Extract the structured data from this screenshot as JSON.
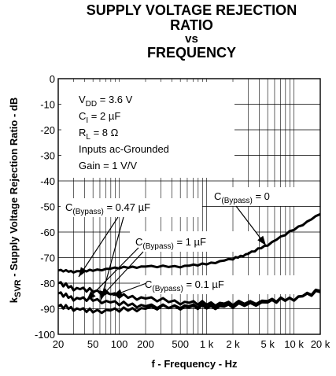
{
  "title": {
    "line1": "SUPPLY VOLTAGE REJECTION",
    "line2": "RATIO",
    "line3": "vs",
    "line4": "FREQUENCY"
  },
  "chart_data": {
    "type": "line",
    "title": "SUPPLY VOLTAGE REJECTION RATIO vs FREQUENCY",
    "xlabel": "f - Frequency - Hz",
    "ylabel": "kSVR - Supply Voltage Rejection Ratio - dB",
    "x_scale": "log",
    "xlim": [
      20,
      20000
    ],
    "ylim": [
      -100,
      0
    ],
    "x_ticks": [
      20,
      50,
      100,
      200,
      500,
      1000,
      2000,
      5000,
      10000,
      20000
    ],
    "x_tick_labels": [
      "20",
      "50",
      "100",
      "200",
      "500",
      "1 k",
      "2 k",
      "5 k",
      "10 k",
      "20 k"
    ],
    "y_ticks": [
      0,
      -10,
      -20,
      -30,
      -40,
      -50,
      -60,
      -70,
      -80,
      -90,
      -100
    ],
    "y_tick_labels": [
      "0",
      "-10",
      "-20",
      "-30",
      "-40",
      "-50",
      "-60",
      "-70",
      "-80",
      "-90",
      "-100"
    ],
    "grid": true,
    "conditions": [
      {
        "main": "V",
        "sub": "DD",
        "rest": " = 3.6 V"
      },
      {
        "main": "C",
        "sub": "I",
        "rest": " = 2 µF"
      },
      {
        "main": "R",
        "sub": "L",
        "rest": " = 8 Ω"
      },
      {
        "main": "Inputs ac-Grounded",
        "sub": "",
        "rest": ""
      },
      {
        "main": "Gain = 1 V/V",
        "sub": "",
        "rest": ""
      }
    ],
    "series": [
      {
        "name": "C(Bypass) = 0",
        "label_main": "C",
        "label_sub": "(Bypass)",
        "label_rest": " = 0",
        "x": [
          20,
          30,
          50,
          100,
          200,
          500,
          1000,
          2000,
          3000,
          5000,
          10000,
          20000
        ],
        "y": [
          -75,
          -75.5,
          -75,
          -74,
          -73.5,
          -73.5,
          -72.5,
          -70.5,
          -68.5,
          -65,
          -59,
          -53
        ]
      },
      {
        "name": "C(Bypass) = 0.47 µF",
        "label_main": "C",
        "label_sub": "(Bypass)",
        "label_rest": " = 0.47 µF",
        "x": [
          20,
          30,
          50,
          100,
          200,
          500,
          1000,
          2000,
          5000,
          10000,
          20000
        ],
        "y": [
          -80,
          -82,
          -83,
          -85,
          -86,
          -87.5,
          -88,
          -88,
          -87,
          -86,
          -83
        ]
      },
      {
        "name": "C(Bypass) = 1 µF",
        "label_main": "C",
        "label_sub": "(Bypass)",
        "label_rest": " = 1 µF",
        "x": [
          20,
          30,
          50,
          100,
          200,
          500,
          1000,
          2000,
          5000,
          10000,
          20000
        ],
        "y": [
          -84,
          -86,
          -86.5,
          -88,
          -89,
          -89.5,
          -89.5,
          -89,
          -87.5,
          -86,
          -83
        ]
      },
      {
        "name": "C(Bypass) = 0.1 µF",
        "label_main": "C",
        "label_sub": "(Bypass)",
        "label_rest": " = 0.1 µF",
        "x": [
          20,
          30,
          50,
          100,
          200,
          500,
          1000,
          2000,
          5000,
          10000,
          20000
        ],
        "y": [
          -89,
          -90,
          -91,
          -90.5,
          -90,
          -89,
          -89,
          -88.5,
          -87.5,
          -86,
          -83.5
        ]
      }
    ]
  }
}
